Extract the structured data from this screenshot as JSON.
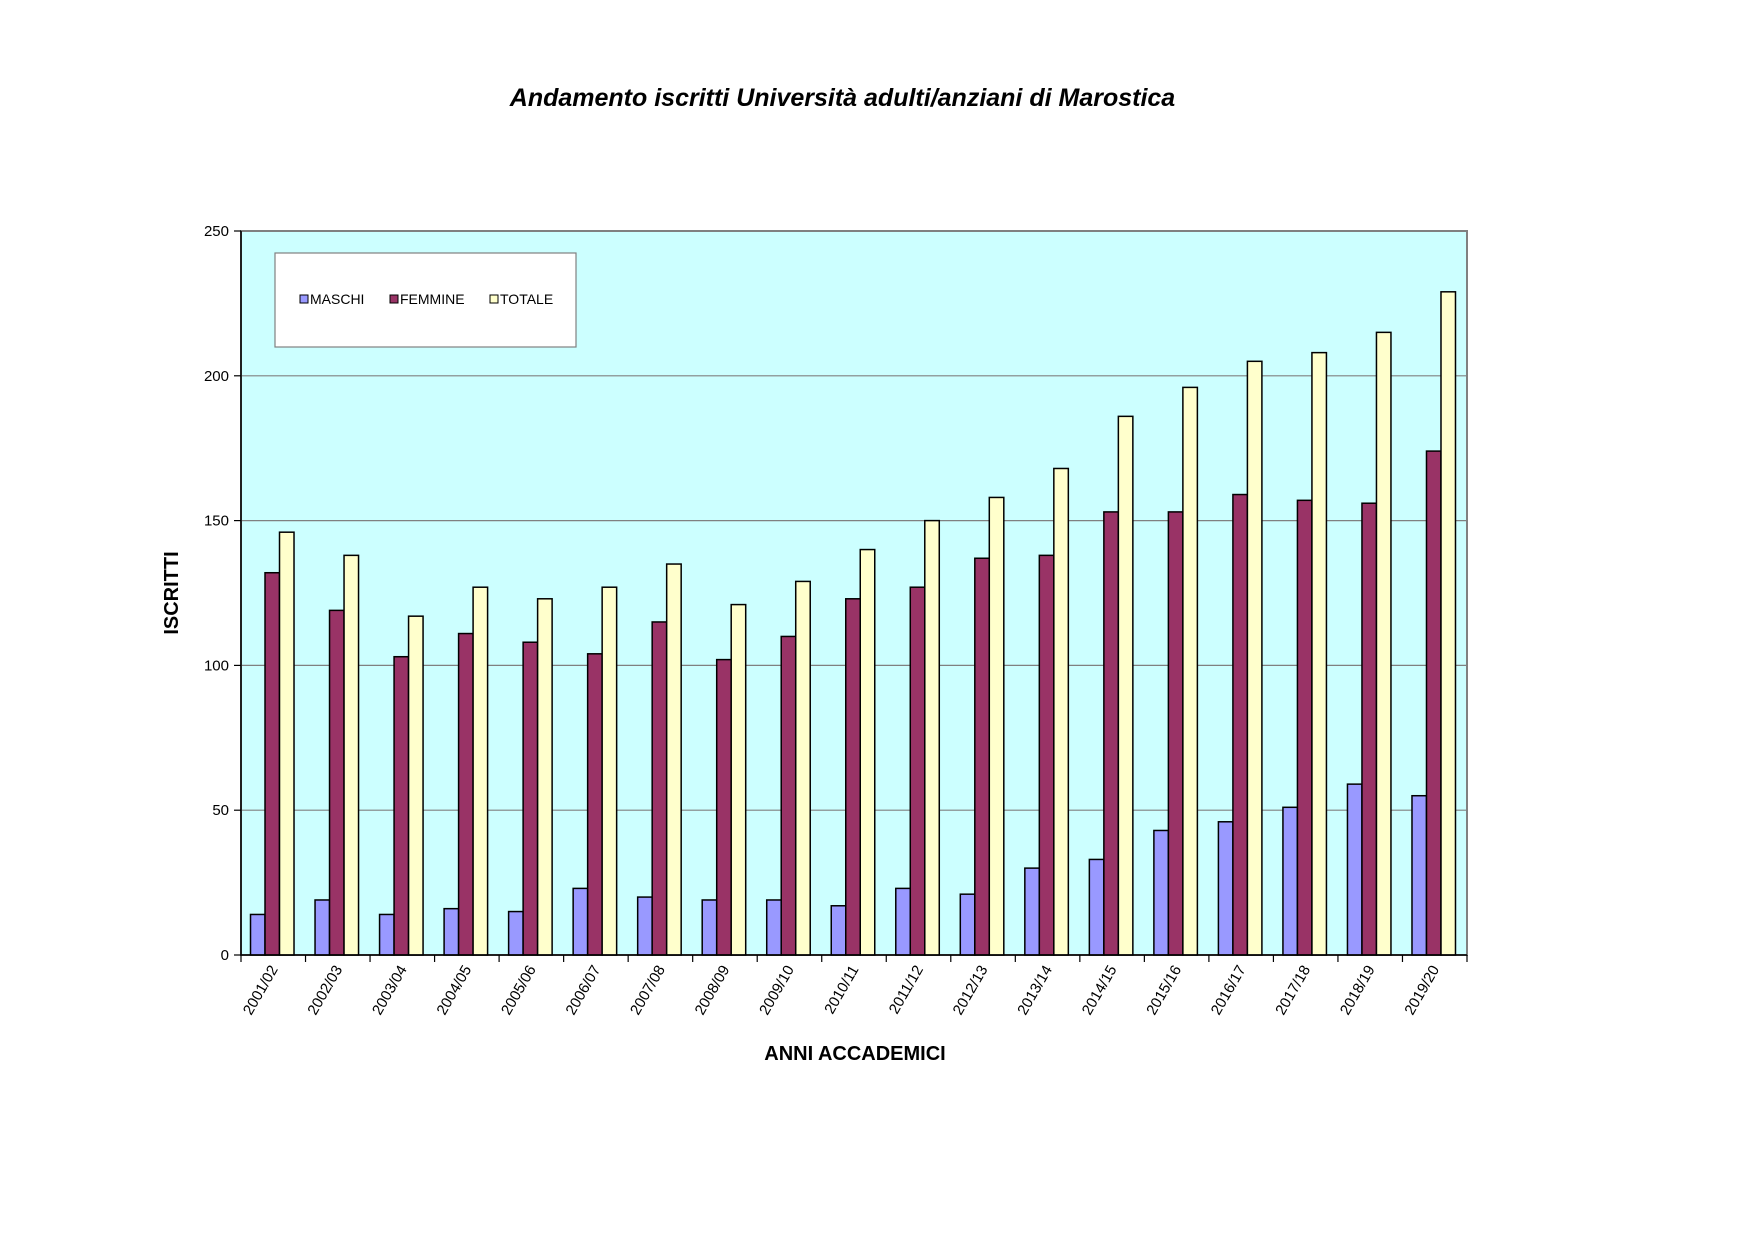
{
  "chart_data": {
    "type": "bar",
    "title": "Andamento iscritti Università adulti/anziani di Marostica",
    "xlabel": "ANNI ACCADEMICI",
    "ylabel": "ISCRITTI",
    "ylim": [
      0,
      250
    ],
    "yticks": [
      "0",
      "50",
      "100",
      "150",
      "200",
      "250"
    ],
    "grid": true,
    "legend_position": "top-left",
    "plot_background": "#ccffff",
    "categories": [
      "2001/02",
      "2002/03",
      "2003/04",
      "2004/05",
      "2005/06",
      "2006/07",
      "2007/08",
      "2008/09",
      "2009/10",
      "2010/11",
      "2011/12",
      "2012/13",
      "2013/14",
      "2014/15",
      "2015/16",
      "2016/17",
      "2017/18",
      "2018/19",
      "2019/20"
    ],
    "series": [
      {
        "name": "MASCHI",
        "color": "#9999ff",
        "values": [
          14,
          19,
          14,
          16,
          15,
          23,
          20,
          19,
          19,
          17,
          23,
          21,
          30,
          33,
          43,
          46,
          51,
          59,
          55
        ]
      },
      {
        "name": "FEMMINE",
        "color": "#993366",
        "values": [
          132,
          119,
          103,
          111,
          108,
          104,
          115,
          102,
          110,
          123,
          127,
          137,
          138,
          153,
          153,
          159,
          157,
          156,
          174
        ]
      },
      {
        "name": "TOTALE",
        "color": "#ffffcc",
        "values": [
          146,
          138,
          117,
          127,
          123,
          127,
          135,
          121,
          129,
          140,
          150,
          158,
          168,
          186,
          196,
          205,
          208,
          215,
          229
        ]
      }
    ]
  }
}
